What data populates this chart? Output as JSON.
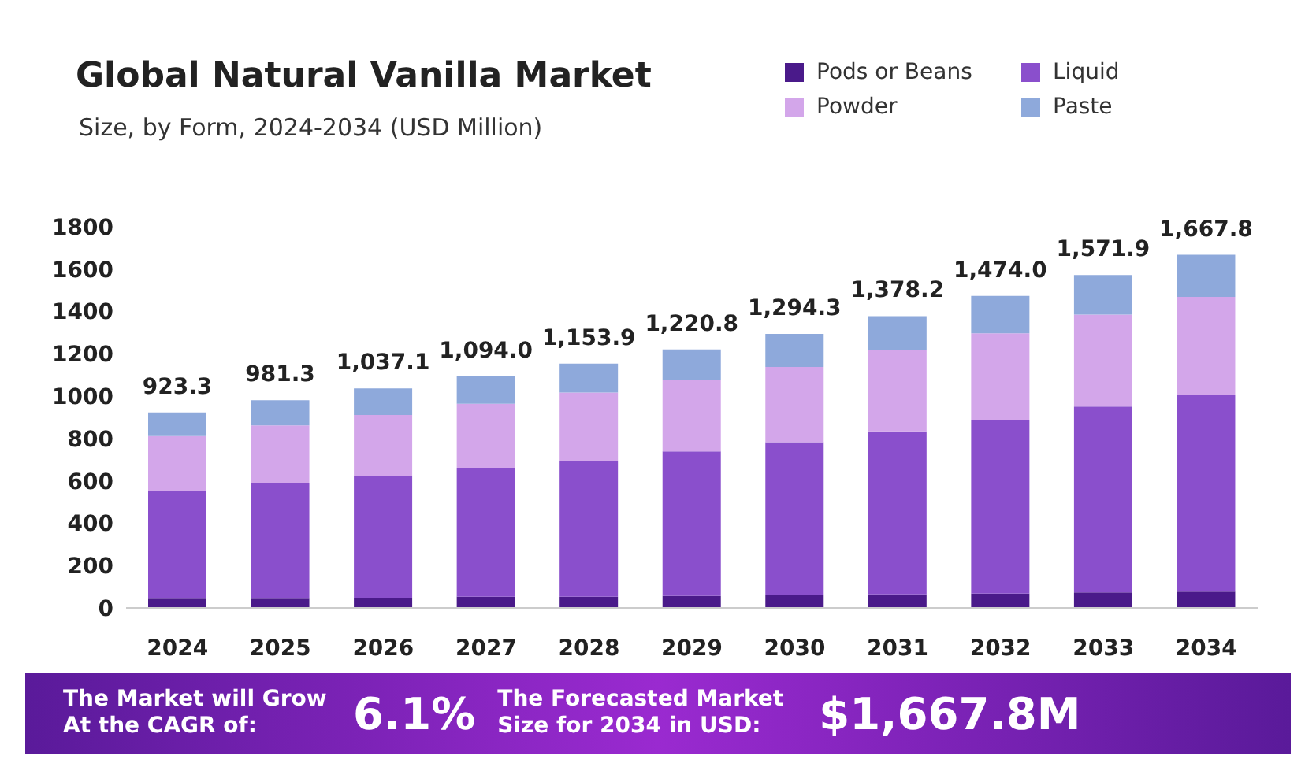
{
  "chart_data": {
    "type": "bar",
    "stacked": true,
    "title": "Global Natural Vanilla Market",
    "subtitle": "Size, by Form, 2024-2034 (USD Million)",
    "categories": [
      "2024",
      "2025",
      "2026",
      "2027",
      "2028",
      "2029",
      "2030",
      "2031",
      "2032",
      "2033",
      "2034"
    ],
    "series": [
      {
        "name": "Pods or Beans",
        "color": "#4a1a8a",
        "values": [
          44,
          44,
          48,
          53,
          53,
          57,
          60,
          64,
          68,
          73,
          77
        ]
      },
      {
        "name": "Liquid",
        "color": "#8a4fcc",
        "values": [
          510,
          547,
          576,
          609,
          642,
          682,
          723,
          770,
          821,
          878,
          929
        ]
      },
      {
        "name": "Powder",
        "color": "#d3a6ea",
        "values": [
          258,
          271,
          287,
          302,
          322,
          338,
          355,
          382,
          408,
          434,
          463
        ]
      },
      {
        "name": "Paste",
        "color": "#8ea9db",
        "values": [
          111.3,
          119.3,
          126.1,
          130,
          136.9,
          143.8,
          156.3,
          162.2,
          177,
          186.9,
          198.8
        ]
      }
    ],
    "totals": [
      "923.3",
      "981.3",
      "1,037.1",
      "1,094.0",
      "1,153.9",
      "1,220.8",
      "1,294.3",
      "1,378.2",
      "1,474.0",
      "1,571.9",
      "1,667.8"
    ],
    "ylim": [
      0,
      1800
    ],
    "yticks": [
      0,
      200,
      400,
      600,
      800,
      1000,
      1200,
      1400,
      1600,
      1800
    ],
    "grid": false,
    "legend": "top right",
    "annotations": [
      "The Market will Grow At the CAGR of:",
      "6.1%",
      "The Forecasted Market Size for 2034 in USD:",
      "$1,667.8M"
    ]
  }
}
